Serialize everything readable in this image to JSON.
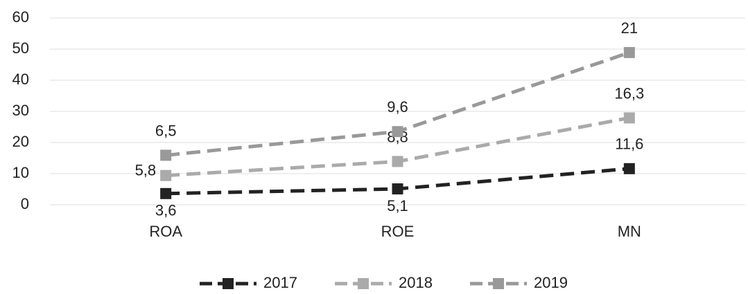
{
  "chart_data": {
    "type": "line",
    "stacked": true,
    "categories": [
      "ROA",
      "ROE",
      "MN"
    ],
    "series": [
      {
        "name": "2017",
        "color": "#222222",
        "values": [
          3.6,
          5.1,
          11.6
        ],
        "value_labels": [
          "3,6",
          "5,1",
          "11,6"
        ]
      },
      {
        "name": "2018",
        "color": "#aaaaaa",
        "values": [
          5.8,
          8.8,
          16.3
        ],
        "value_labels": [
          "5,8",
          "8,8",
          "16,3"
        ]
      },
      {
        "name": "2019",
        "color": "#999999",
        "values": [
          6.5,
          9.6,
          21
        ],
        "value_labels": [
          "6,5",
          "9,6",
          "21"
        ]
      }
    ],
    "ylim": [
      0,
      60
    ],
    "yticks": [
      0,
      10,
      20,
      30,
      40,
      50,
      60
    ],
    "grid": true,
    "legend": "bottom"
  }
}
